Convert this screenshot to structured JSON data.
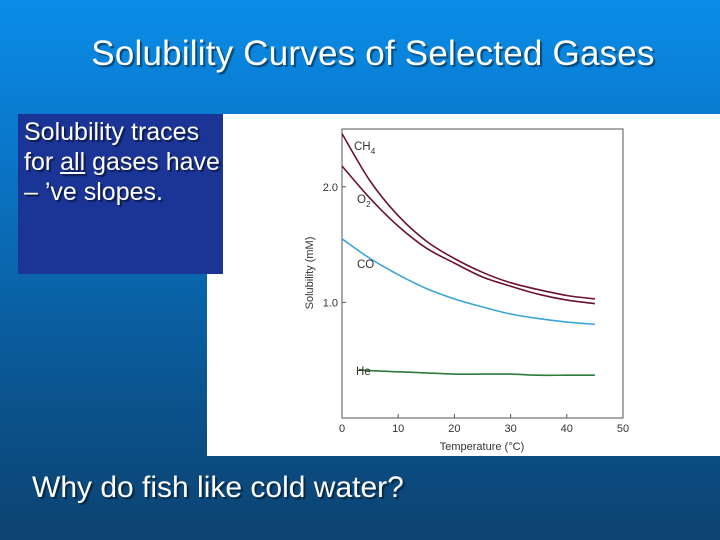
{
  "slide": {
    "title": "Solubility Curves of Selected Gases",
    "callout_pre": "Solubility traces for ",
    "callout_emph": "all",
    "callout_post": " gases have – ’ve slopes.",
    "question": "Why do fish like cold water?"
  },
  "colors": {
    "background_top": "#0a8de8",
    "background_bottom": "#0c4372",
    "callout_box": "#1a3596",
    "ch4": "#6b1231",
    "o2": "#6b1231",
    "co": "#3aa6d8",
    "he": "#2e7a3a"
  },
  "chart_data": {
    "type": "line",
    "title": "",
    "xlabel": "Temperature (°C)",
    "ylabel": "Solubility (mM)",
    "xlim": [
      0,
      50
    ],
    "ylim": [
      0,
      2.5
    ],
    "xticks": [
      0,
      10,
      20,
      30,
      40,
      50
    ],
    "xtick_labels": [
      "0",
      "10",
      "20",
      "30",
      "40",
      "50"
    ],
    "yticks": [
      1.0,
      2.0
    ],
    "ytick_labels": [
      "1.0",
      "2.0"
    ],
    "grid": false,
    "series": [
      {
        "name": "CH4",
        "label_main": "CH",
        "label_sub": "4",
        "color": "#6b1231",
        "x": [
          0,
          5,
          10,
          15,
          20,
          25,
          30,
          35,
          40,
          45
        ],
        "y": [
          2.46,
          2.05,
          1.75,
          1.53,
          1.38,
          1.26,
          1.17,
          1.11,
          1.06,
          1.03
        ]
      },
      {
        "name": "O2",
        "label_main": "O",
        "label_sub": "2",
        "color": "#6b1231",
        "x": [
          0,
          5,
          10,
          15,
          20,
          25,
          30,
          35,
          40,
          45
        ],
        "y": [
          2.18,
          1.9,
          1.66,
          1.47,
          1.34,
          1.22,
          1.14,
          1.07,
          1.02,
          0.99
        ]
      },
      {
        "name": "CO",
        "label_main": "CO",
        "label_sub": "",
        "color": "#3aa6d8",
        "x": [
          0,
          5,
          10,
          15,
          20,
          25,
          30,
          35,
          40,
          45
        ],
        "y": [
          1.55,
          1.38,
          1.24,
          1.12,
          1.03,
          0.96,
          0.9,
          0.86,
          0.83,
          0.81
        ]
      },
      {
        "name": "He",
        "label_main": "He",
        "label_sub": "",
        "color": "#2e7a3a",
        "x": [
          3,
          5,
          10,
          15,
          20,
          25,
          30,
          35,
          40,
          45
        ],
        "y": [
          0.42,
          0.41,
          0.4,
          0.39,
          0.38,
          0.38,
          0.38,
          0.37,
          0.37,
          0.37
        ]
      }
    ]
  }
}
